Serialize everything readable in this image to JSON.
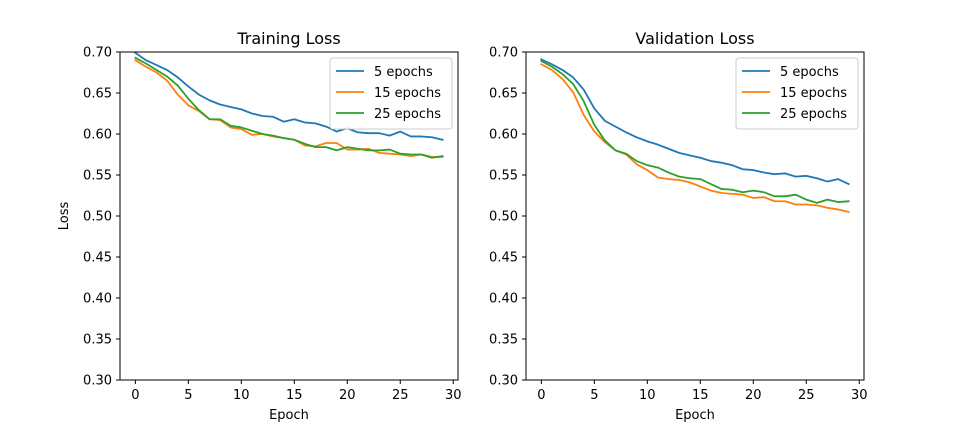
{
  "chart_data": [
    {
      "type": "line",
      "title": "Training Loss",
      "xlabel": "Epoch",
      "ylabel": "Loss",
      "xlim": [
        -1.45,
        30.45
      ],
      "ylim": [
        0.3,
        0.7
      ],
      "xticks": [
        0,
        5,
        10,
        15,
        20,
        25,
        30
      ],
      "yticks": [
        0.3,
        0.35,
        0.4,
        0.45,
        0.5,
        0.55,
        0.6,
        0.65,
        0.7
      ],
      "grid": false,
      "legend": "top-right",
      "x": [
        0,
        1,
        2,
        3,
        4,
        5,
        6,
        7,
        8,
        9,
        10,
        11,
        12,
        13,
        14,
        15,
        16,
        17,
        18,
        19,
        20,
        21,
        22,
        23,
        24,
        25,
        26,
        27,
        28,
        29
      ],
      "series": [
        {
          "name": "5 epochs",
          "color": "#1f77b4",
          "values": [
            0.699,
            0.69,
            0.684,
            0.678,
            0.669,
            0.658,
            0.648,
            0.641,
            0.636,
            0.633,
            0.63,
            0.625,
            0.622,
            0.621,
            0.615,
            0.618,
            0.614,
            0.613,
            0.609,
            0.603,
            0.607,
            0.602,
            0.601,
            0.601,
            0.598,
            0.603,
            0.597,
            0.597,
            0.596,
            0.593
          ]
        },
        {
          "name": "15 epochs",
          "color": "#ff7f0e",
          "values": [
            0.69,
            0.682,
            0.675,
            0.665,
            0.648,
            0.635,
            0.628,
            0.618,
            0.617,
            0.608,
            0.606,
            0.599,
            0.6,
            0.597,
            0.595,
            0.593,
            0.586,
            0.585,
            0.589,
            0.589,
            0.581,
            0.581,
            0.582,
            0.577,
            0.576,
            0.575,
            0.573,
            0.575,
            0.572,
            0.572
          ]
        },
        {
          "name": "25 epochs",
          "color": "#2ca02c",
          "values": [
            0.693,
            0.686,
            0.678,
            0.67,
            0.659,
            0.643,
            0.629,
            0.618,
            0.618,
            0.61,
            0.608,
            0.604,
            0.6,
            0.598,
            0.595,
            0.593,
            0.588,
            0.584,
            0.584,
            0.58,
            0.584,
            0.582,
            0.58,
            0.58,
            0.581,
            0.576,
            0.575,
            0.575,
            0.571,
            0.573
          ]
        }
      ]
    },
    {
      "type": "line",
      "title": "Validation Loss",
      "xlabel": "Epoch",
      "ylabel": "",
      "xlim": [
        -1.45,
        30.45
      ],
      "ylim": [
        0.3,
        0.7
      ],
      "xticks": [
        0,
        5,
        10,
        15,
        20,
        25,
        30
      ],
      "yticks": [
        0.3,
        0.35,
        0.4,
        0.45,
        0.5,
        0.55,
        0.6,
        0.65,
        0.7
      ],
      "grid": false,
      "legend": "top-right",
      "x": [
        0,
        1,
        2,
        3,
        4,
        5,
        6,
        7,
        8,
        9,
        10,
        11,
        12,
        13,
        14,
        15,
        16,
        17,
        18,
        19,
        20,
        21,
        22,
        23,
        24,
        25,
        26,
        27,
        28,
        29
      ],
      "series": [
        {
          "name": "5 epochs",
          "color": "#1f77b4",
          "values": [
            0.691,
            0.685,
            0.678,
            0.669,
            0.654,
            0.631,
            0.616,
            0.609,
            0.602,
            0.596,
            0.591,
            0.587,
            0.582,
            0.577,
            0.574,
            0.571,
            0.567,
            0.565,
            0.562,
            0.557,
            0.556,
            0.553,
            0.551,
            0.552,
            0.548,
            0.549,
            0.546,
            0.542,
            0.545,
            0.539
          ]
        },
        {
          "name": "15 epochs",
          "color": "#ff7f0e",
          "values": [
            0.685,
            0.678,
            0.667,
            0.651,
            0.623,
            0.603,
            0.59,
            0.58,
            0.575,
            0.563,
            0.556,
            0.547,
            0.545,
            0.544,
            0.541,
            0.536,
            0.531,
            0.528,
            0.527,
            0.526,
            0.522,
            0.523,
            0.518,
            0.518,
            0.514,
            0.514,
            0.513,
            0.51,
            0.508,
            0.505
          ]
        },
        {
          "name": "25 epochs",
          "color": "#2ca02c",
          "values": [
            0.689,
            0.682,
            0.673,
            0.661,
            0.64,
            0.611,
            0.592,
            0.58,
            0.576,
            0.567,
            0.562,
            0.559,
            0.553,
            0.548,
            0.546,
            0.545,
            0.539,
            0.533,
            0.532,
            0.529,
            0.531,
            0.529,
            0.524,
            0.524,
            0.526,
            0.52,
            0.516,
            0.52,
            0.517,
            0.518
          ]
        }
      ]
    }
  ]
}
